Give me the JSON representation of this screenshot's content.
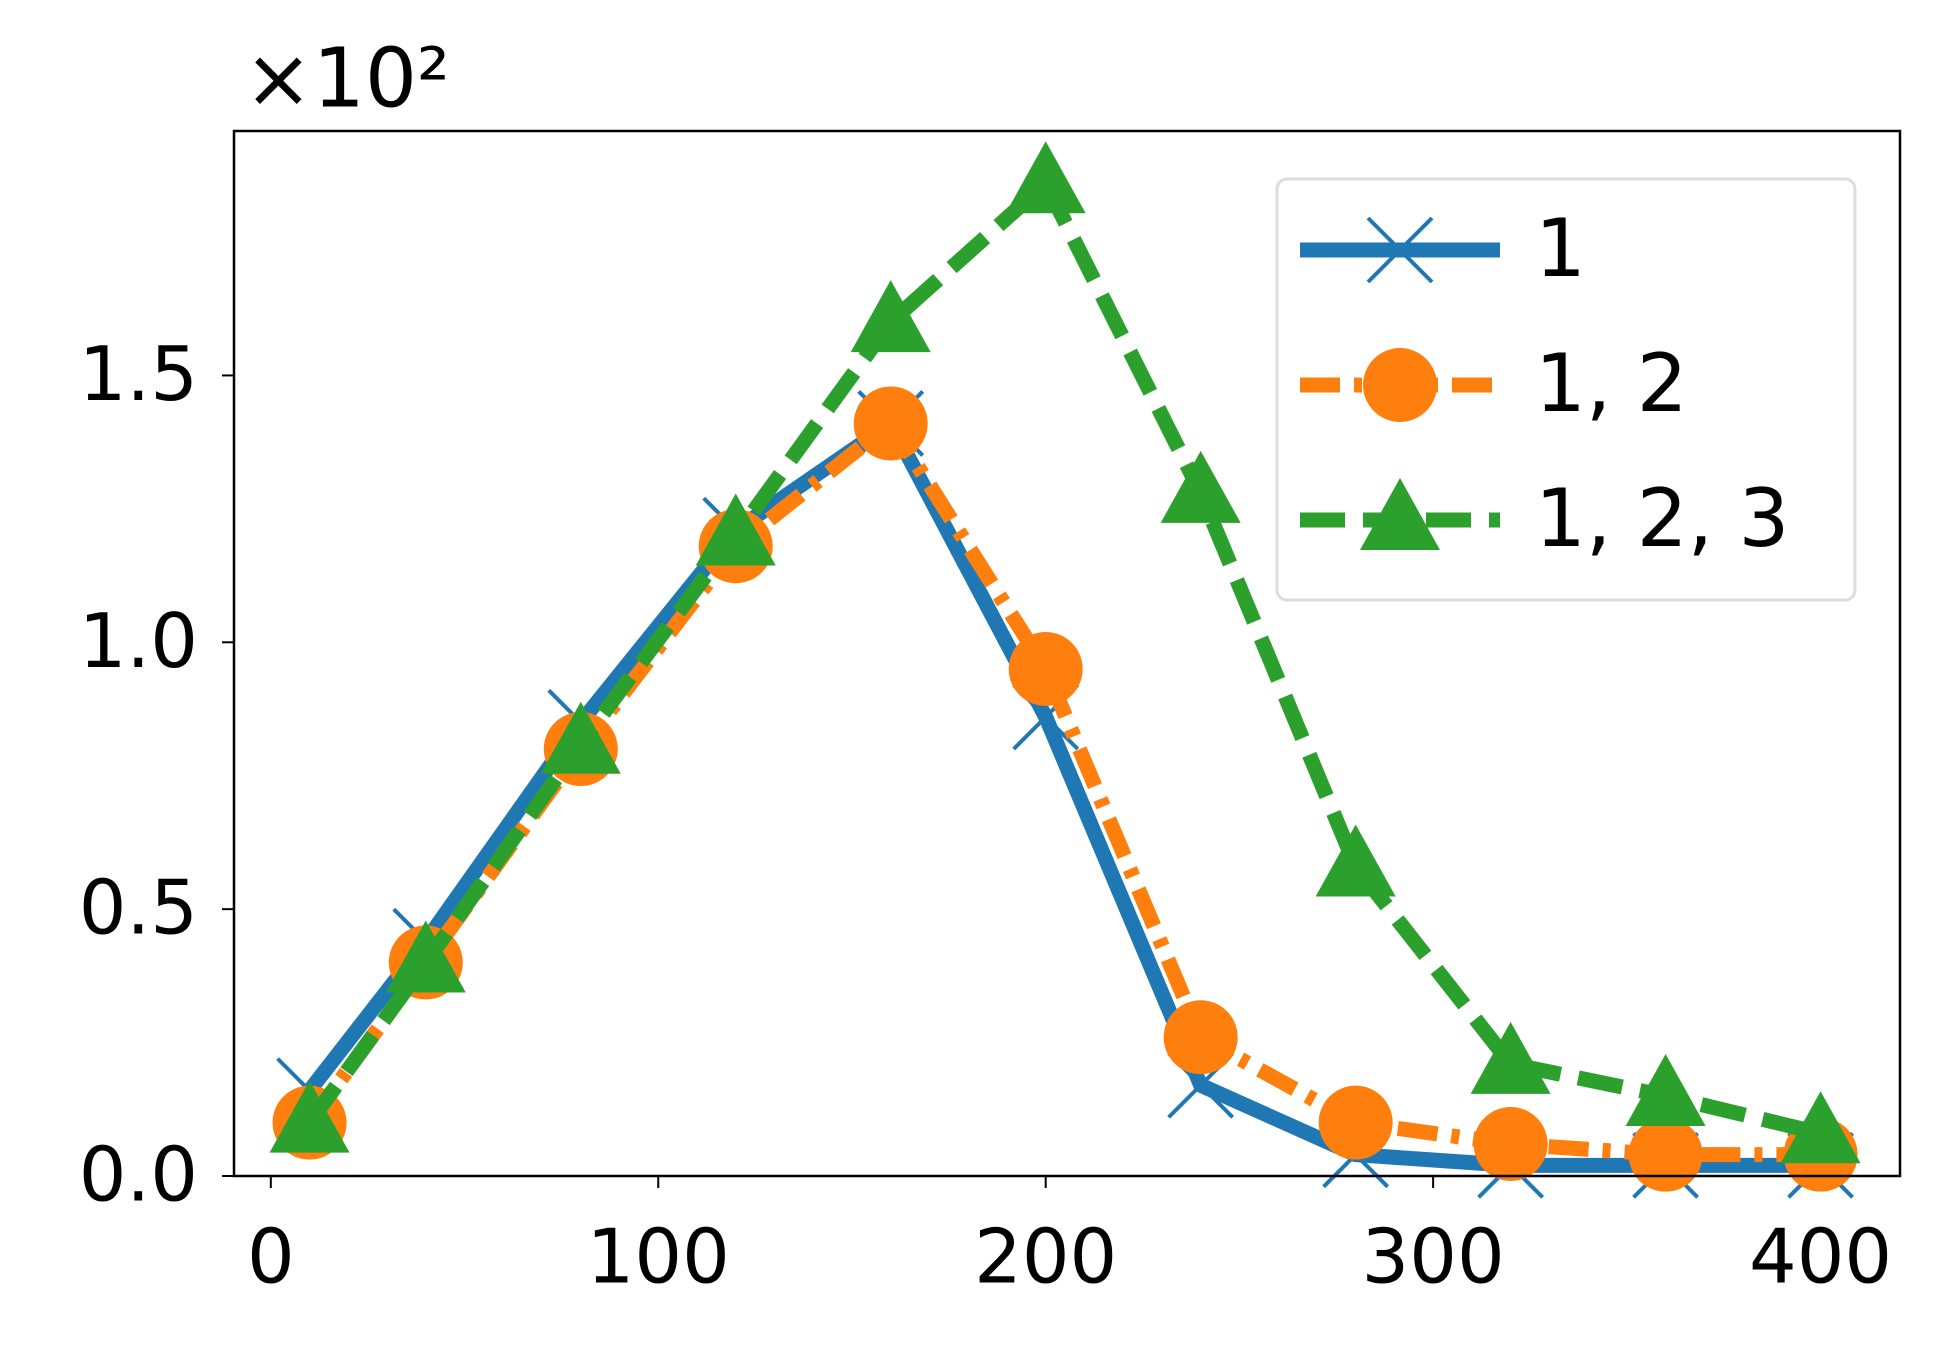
{
  "chart_data": {
    "type": "line",
    "y_offset_label": "×10²",
    "x": [
      10,
      40,
      80,
      120,
      160,
      200,
      240,
      280,
      320,
      360,
      400
    ],
    "series": [
      {
        "name": "1",
        "color": "#1f77b4",
        "linestyle": "solid",
        "marker": "x",
        "values": [
          0.16,
          0.44,
          0.85,
          1.21,
          1.41,
          0.86,
          0.17,
          0.04,
          0.02,
          0.02,
          0.02
        ]
      },
      {
        "name": "1, 2",
        "color": "#ff7f0e",
        "linestyle": "dashdot",
        "marker": "circle",
        "values": [
          0.1,
          0.4,
          0.8,
          1.18,
          1.41,
          0.95,
          0.26,
          0.1,
          0.06,
          0.04,
          0.04
        ]
      },
      {
        "name": "1, 2, 3",
        "color": "#2ca02c",
        "linestyle": "dashed",
        "marker": "triangle",
        "values": [
          0.1,
          0.4,
          0.81,
          1.2,
          1.6,
          1.86,
          1.28,
          0.58,
          0.21,
          0.15,
          0.08
        ]
      }
    ],
    "xlim": [
      -9.5,
      420.5
    ],
    "xticks": [
      0,
      100,
      200,
      300,
      400
    ],
    "ylim": [
      0,
      1.958
    ],
    "yticks": [
      {
        "value": 0,
        "label": "0.0"
      },
      0.5,
      {
        "value": 1,
        "label": "1.0"
      },
      1.5
    ],
    "grid": false,
    "legend": "upper right"
  }
}
